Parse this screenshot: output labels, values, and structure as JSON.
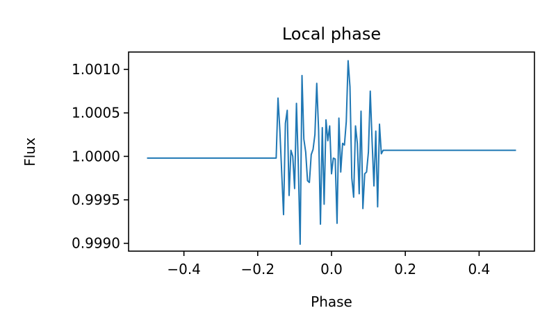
{
  "chart_data": {
    "type": "line",
    "title": "Local phase",
    "xlabel": "Phase",
    "ylabel": "Flux",
    "xlim": [
      -0.55,
      0.55
    ],
    "ylim": [
      0.99891,
      1.0012
    ],
    "xticks": [
      -0.4,
      -0.2,
      0.0,
      0.2,
      0.4
    ],
    "xtick_labels": [
      "−0.4",
      "−0.2",
      "0.0",
      "0.2",
      "0.4"
    ],
    "yticks": [
      0.999,
      0.9995,
      1.0,
      1.0005,
      1.001
    ],
    "ytick_labels": [
      "0.9990",
      "0.9995",
      "1.0000",
      "1.0005",
      "1.0010"
    ],
    "grid": false,
    "series": [
      {
        "color": "#1f77b4",
        "x": [
          -0.5,
          -0.15,
          -0.145,
          -0.14,
          -0.13,
          -0.125,
          -0.12,
          -0.115,
          -0.11,
          -0.105,
          -0.1,
          -0.095,
          -0.09,
          -0.085,
          -0.08,
          -0.075,
          -0.07,
          -0.065,
          -0.06,
          -0.055,
          -0.05,
          -0.045,
          -0.04,
          -0.035,
          -0.03,
          -0.025,
          -0.02,
          -0.015,
          -0.01,
          -0.005,
          0.0,
          0.005,
          0.01,
          0.015,
          0.02,
          0.025,
          0.03,
          0.035,
          0.04,
          0.045,
          0.05,
          0.055,
          0.06,
          0.065,
          0.07,
          0.075,
          0.08,
          0.085,
          0.09,
          0.095,
          0.1,
          0.105,
          0.11,
          0.115,
          0.12,
          0.125,
          0.13,
          0.135,
          0.14,
          0.145,
          0.15,
          0.155,
          0.5
        ],
        "y": [
          0.99998,
          0.99998,
          1.00067,
          1.0003,
          0.99933,
          1.00038,
          1.00053,
          0.99955,
          1.00007,
          1.0,
          0.99963,
          1.00061,
          0.9999,
          0.99899,
          1.00093,
          1.0002,
          1.00005,
          0.99972,
          0.9997,
          1.00002,
          1.00008,
          1.00025,
          1.00084,
          1.0003,
          0.99922,
          1.00033,
          0.99945,
          1.00042,
          1.00018,
          1.00035,
          0.9998,
          0.99998,
          0.99997,
          0.99923,
          1.00044,
          0.99982,
          1.00015,
          1.00013,
          1.0004,
          1.0011,
          1.0008,
          0.99975,
          0.99953,
          1.00035,
          1.00015,
          0.99957,
          1.00052,
          0.9994,
          0.9998,
          0.99982,
          1.00005,
          1.00075,
          1.00017,
          0.99966,
          1.00029,
          0.99942,
          1.00037,
          1.00003,
          1.00007,
          1.00007,
          1.00007,
          1.00007,
          1.00007
        ]
      }
    ]
  }
}
